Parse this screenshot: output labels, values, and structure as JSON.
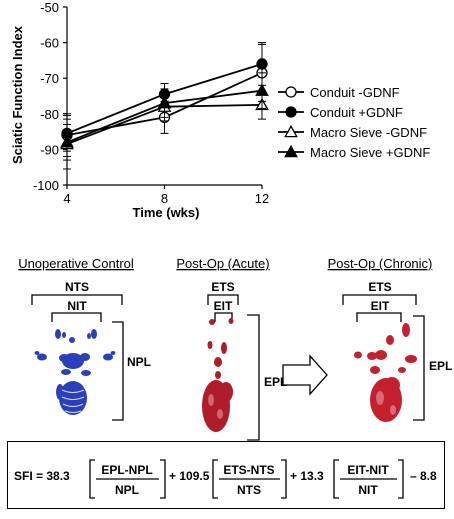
{
  "chart_data": {
    "type": "line",
    "ylabel": "Sciatic Function Index",
    "xlabel": "Time (wks)",
    "x": [
      4,
      8,
      12
    ],
    "xticks": [
      "4",
      "8",
      "12"
    ],
    "xlim": [
      4,
      12
    ],
    "ylim": [
      -100,
      -50
    ],
    "yticks": [
      "-50",
      "-60",
      "-70",
      "-80",
      "-90",
      "-100"
    ],
    "grid": false,
    "legend_position": "right",
    "series": [
      {
        "name": "Conduit -GDNF",
        "marker": "open-circle",
        "values": [
          -86,
          -81,
          -68.5
        ],
        "errors": [
          6,
          4.5,
          8
        ]
      },
      {
        "name": "Conduit +GDNF",
        "marker": "filled-circle",
        "values": [
          -85.5,
          -74.5,
          -66
        ],
        "errors": [
          5,
          3,
          6
        ]
      },
      {
        "name": "Macro Sieve -GDNF",
        "marker": "open-triangle",
        "values": [
          -88.5,
          -78,
          -77.5
        ],
        "errors": [
          7,
          4,
          4
        ]
      },
      {
        "name": "Macro Sieve +GDNF",
        "marker": "filled-triangle",
        "values": [
          -88,
          -77,
          -73.5
        ],
        "errors": [
          5,
          4,
          5
        ]
      }
    ]
  },
  "panels": {
    "control_title": "Unoperative Control",
    "acute_title": "Post-Op (Acute)",
    "chronic_title": "Post-Op (Chronic)",
    "nts": "NTS",
    "nit": "NIT",
    "npl": "NPL",
    "ets": "ETS",
    "eit": "EIT",
    "epl": "EPL"
  },
  "formula": {
    "lhs": "SFI = 38.3",
    "frac1_num": "EPL-NPL",
    "frac1_den": "NPL",
    "op1": "+ 109.5",
    "frac2_num": "ETS-NTS",
    "frac2_den": "NTS",
    "op2": "+ 13.3",
    "frac3_num": "EIT-NIT",
    "frac3_den": "NIT",
    "tail": "– 8.8"
  },
  "colors": {
    "ink": "#000000",
    "blue_print": "#2b3fb8",
    "red_print": "#b01c2a"
  }
}
